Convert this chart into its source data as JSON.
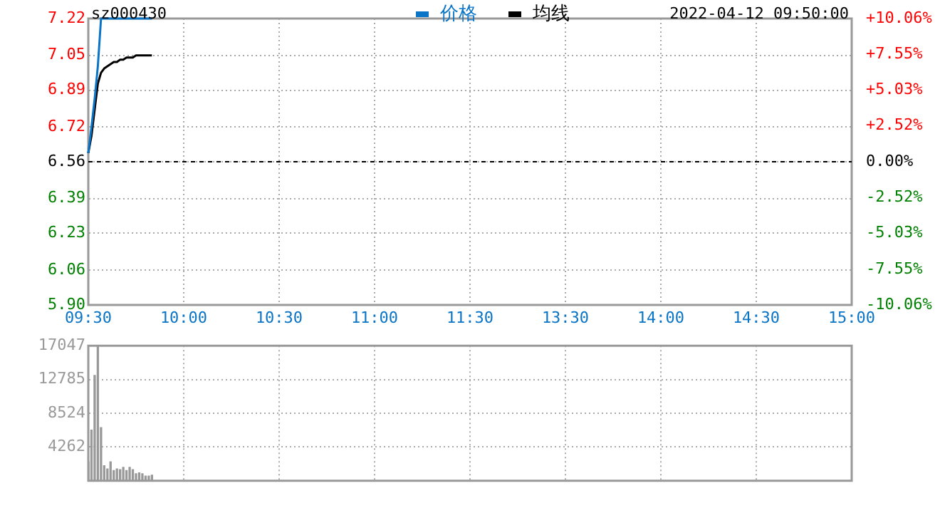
{
  "chart_data": [
    {
      "type": "line",
      "title": "sz000430",
      "annotations": [
        "2022-04-12 09:50:00"
      ],
      "categories": [
        "09:30",
        null,
        null,
        null,
        null,
        null,
        null,
        null,
        null,
        null,
        null,
        null,
        null,
        null,
        null,
        null,
        null,
        null,
        null,
        null,
        null,
        null,
        null,
        null,
        null,
        null,
        null,
        null,
        null,
        null,
        "10:00",
        null,
        null,
        null,
        null,
        null,
        null,
        null,
        null,
        null,
        null,
        null,
        null,
        null,
        null,
        null,
        null,
        null,
        null,
        null,
        null,
        null,
        null,
        null,
        null,
        null,
        null,
        null,
        null,
        null,
        "10:30",
        null,
        null,
        null,
        null,
        null,
        null,
        null,
        null,
        null,
        null,
        null,
        null,
        null,
        null,
        null,
        null,
        null,
        null,
        null,
        null,
        null,
        null,
        null,
        null,
        null,
        null,
        null,
        null,
        null,
        "11:00",
        null,
        null,
        null,
        null,
        null,
        null,
        null,
        null,
        null,
        null,
        null,
        null,
        null,
        null,
        null,
        null,
        null,
        null,
        null,
        null,
        null,
        null,
        null,
        null,
        null,
        null,
        null,
        null,
        null,
        "11:30",
        null,
        null,
        null,
        null,
        null,
        null,
        null,
        null,
        null,
        null,
        null,
        null,
        null,
        null,
        null,
        null,
        null,
        null,
        null,
        null,
        null,
        null,
        null,
        null,
        null,
        null,
        null,
        null,
        null,
        "13:30",
        null,
        null,
        null,
        null,
        null,
        null,
        null,
        null,
        null,
        null,
        null,
        null,
        null,
        null,
        null,
        null,
        null,
        null,
        null,
        null,
        null,
        null,
        null,
        null,
        null,
        null,
        null,
        null,
        null,
        "14:00",
        null,
        null,
        null,
        null,
        null,
        null,
        null,
        null,
        null,
        null,
        null,
        null,
        null,
        null,
        null,
        null,
        null,
        null,
        null,
        null,
        null,
        null,
        null,
        null,
        null,
        null,
        null,
        null,
        null,
        "14:30",
        null,
        null,
        null,
        null,
        null,
        null,
        null,
        null,
        null,
        null,
        null,
        null,
        null,
        null,
        null,
        null,
        null,
        null,
        null,
        null,
        null,
        null,
        null,
        null,
        null,
        null,
        null,
        null,
        null,
        "15:00"
      ],
      "series": [
        {
          "name": "价格",
          "color": "#0a74c6",
          "values": [
            6.6,
            6.72,
            6.85,
            7.0,
            7.22,
            7.22,
            7.22,
            7.22,
            7.22,
            7.22,
            7.22,
            7.22,
            7.22,
            7.22,
            7.22,
            7.22,
            7.22,
            7.22,
            7.22,
            7.22,
            7.22,
            null,
            null,
            null,
            null,
            null,
            null,
            null,
            null,
            null,
            null,
            null,
            null,
            null,
            null,
            null,
            null,
            null,
            null,
            null,
            null,
            null,
            null,
            null,
            null,
            null,
            null,
            null,
            null,
            null,
            null,
            null,
            null,
            null,
            null,
            null,
            null,
            null,
            null,
            null,
            null,
            null,
            null,
            null,
            null,
            null,
            null,
            null,
            null,
            null,
            null,
            null,
            null,
            null,
            null,
            null,
            null,
            null,
            null,
            null,
            null,
            null,
            null,
            null,
            null,
            null,
            null,
            null,
            null,
            null,
            null,
            null,
            null,
            null,
            null,
            null,
            null,
            null,
            null,
            null,
            null,
            null,
            null,
            null,
            null,
            null,
            null,
            null,
            null,
            null,
            null,
            null,
            null,
            null,
            null,
            null,
            null,
            null,
            null,
            null,
            null,
            null,
            null,
            null,
            null,
            null,
            null,
            null,
            null,
            null,
            null,
            null,
            null,
            null,
            null,
            null,
            null,
            null,
            null,
            null,
            null,
            null,
            null,
            null,
            null,
            null,
            null,
            null,
            null,
            null,
            null,
            null,
            null,
            null,
            null,
            null,
            null,
            null,
            null,
            null,
            null,
            null,
            null,
            null,
            null,
            null,
            null,
            null,
            null,
            null,
            null,
            null,
            null,
            null,
            null,
            null,
            null,
            null,
            null,
            null,
            null,
            null,
            null,
            null,
            null,
            null,
            null,
            null,
            null,
            null,
            null,
            null,
            null,
            null,
            null,
            null,
            null,
            null,
            null,
            null,
            null,
            null,
            null,
            null,
            null,
            null,
            null,
            null,
            null,
            null,
            null,
            null,
            null,
            null,
            null,
            null,
            null,
            null,
            null,
            null,
            null,
            null,
            null,
            null,
            null,
            null,
            null,
            null,
            null,
            null,
            null,
            null,
            null,
            null,
            null,
            null,
            null,
            null,
            null,
            null,
            null
          ]
        },
        {
          "name": "均线",
          "color": "#000000",
          "values": [
            6.6,
            6.68,
            6.8,
            6.92,
            6.97,
            6.99,
            7.0,
            7.01,
            7.02,
            7.02,
            7.03,
            7.03,
            7.04,
            7.04,
            7.04,
            7.05,
            7.05,
            7.05,
            7.05,
            7.05,
            7.05,
            null,
            null,
            null,
            null,
            null,
            null,
            null,
            null,
            null,
            null,
            null,
            null,
            null,
            null,
            null,
            null,
            null,
            null,
            null,
            null,
            null,
            null,
            null,
            null,
            null,
            null,
            null,
            null,
            null,
            null,
            null,
            null,
            null,
            null,
            null,
            null,
            null,
            null,
            null,
            null,
            null,
            null,
            null,
            null,
            null,
            null,
            null,
            null,
            null,
            null,
            null,
            null,
            null,
            null,
            null,
            null,
            null,
            null,
            null,
            null,
            null,
            null,
            null,
            null,
            null,
            null,
            null,
            null,
            null,
            null,
            null,
            null,
            null,
            null,
            null,
            null,
            null,
            null,
            null,
            null,
            null,
            null,
            null,
            null,
            null,
            null,
            null,
            null,
            null,
            null,
            null,
            null,
            null,
            null,
            null,
            null,
            null,
            null,
            null,
            null,
            null,
            null,
            null,
            null,
            null,
            null,
            null,
            null,
            null,
            null,
            null,
            null,
            null,
            null,
            null,
            null,
            null,
            null,
            null,
            null,
            null,
            null,
            null,
            null,
            null,
            null,
            null,
            null,
            null,
            null,
            null,
            null,
            null,
            null,
            null,
            null,
            null,
            null,
            null,
            null,
            null,
            null,
            null,
            null,
            null,
            null,
            null,
            null,
            null,
            null,
            null,
            null,
            null,
            null,
            null,
            null,
            null,
            null,
            null,
            null,
            null,
            null,
            null,
            null,
            null,
            null,
            null,
            null,
            null,
            null,
            null,
            null,
            null,
            null,
            null,
            null,
            null,
            null,
            null,
            null,
            null,
            null,
            null,
            null,
            null,
            null,
            null,
            null,
            null,
            null,
            null,
            null,
            null,
            null,
            null,
            null,
            null,
            null,
            null,
            null,
            null,
            null,
            null,
            null,
            null,
            null,
            null,
            null,
            null,
            null,
            null,
            null,
            null,
            null,
            null,
            null,
            null,
            null,
            null,
            null
          ]
        }
      ],
      "ylim": [
        5.9,
        7.22
      ],
      "yticks": [
        {
          "value": 5.9,
          "label": "5.90"
        },
        {
          "value": 6.06,
          "label": "6.06"
        },
        {
          "value": 6.23,
          "label": "6.23"
        },
        {
          "value": 6.39,
          "label": "6.39"
        },
        {
          "value": 6.56,
          "label": "6.56"
        },
        {
          "value": 6.72,
          "label": "6.72"
        },
        {
          "value": 6.89,
          "label": "6.89"
        },
        {
          "value": 7.05,
          "label": "7.05"
        },
        {
          "value": 7.22,
          "label": "7.22"
        }
      ],
      "y2lim": [
        -10.06,
        10.06
      ],
      "y2ticks": [
        {
          "value": -10.06,
          "label": "-10.06%"
        },
        {
          "value": -7.55,
          "label": "-7.55%"
        },
        {
          "value": -5.03,
          "label": "-5.03%"
        },
        {
          "value": -2.52,
          "label": "-2.52%"
        },
        {
          "value": 0,
          "label": "0.00%"
        },
        {
          "value": 2.52,
          "label": "+2.52%"
        },
        {
          "value": 5.03,
          "label": "+5.03%"
        },
        {
          "value": 7.55,
          "label": "+7.55%"
        },
        {
          "value": 10.06,
          "label": "+10.06%"
        }
      ],
      "ref_lines": [
        {
          "axis": "y",
          "value": 6.56,
          "color": "#000000",
          "line_style": "dashed"
        }
      ],
      "grid": true,
      "legend": "top",
      "marker": "none"
    },
    {
      "type": "bar",
      "categories": [
        null,
        null,
        null,
        null,
        null,
        null,
        null,
        null,
        null,
        null,
        null,
        null,
        null,
        null,
        null,
        null,
        null,
        null,
        null,
        null,
        null,
        null,
        null,
        null,
        null,
        null,
        null,
        null,
        null,
        null,
        null,
        null,
        null,
        null,
        null,
        null,
        null,
        null,
        null,
        null,
        null,
        null,
        null,
        null,
        null,
        null,
        null,
        null,
        null,
        null,
        null,
        null,
        null,
        null,
        null,
        null,
        null,
        null,
        null,
        null,
        null,
        null,
        null,
        null,
        null,
        null,
        null,
        null,
        null,
        null,
        null,
        null,
        null,
        null,
        null,
        null,
        null,
        null,
        null,
        null,
        null,
        null,
        null,
        null,
        null,
        null,
        null,
        null,
        null,
        null,
        null,
        null,
        null,
        null,
        null,
        null,
        null,
        null,
        null,
        null,
        null,
        null,
        null,
        null,
        null,
        null,
        null,
        null,
        null,
        null,
        null,
        null,
        null,
        null,
        null,
        null,
        null,
        null,
        null,
        null,
        null,
        null,
        null,
        null,
        null,
        null,
        null,
        null,
        null,
        null,
        null,
        null,
        null,
        null,
        null,
        null,
        null,
        null,
        null,
        null,
        null,
        null,
        null,
        null,
        null,
        null,
        null,
        null,
        null,
        null,
        null,
        null,
        null,
        null,
        null,
        null,
        null,
        null,
        null,
        null,
        null,
        null,
        null,
        null,
        null,
        null,
        null,
        null,
        null,
        null,
        null,
        null,
        null,
        null,
        null,
        null,
        null,
        null,
        null,
        null,
        null,
        null,
        null,
        null,
        null,
        null,
        null,
        null,
        null,
        null,
        null,
        null,
        null,
        null,
        null,
        null,
        null,
        null,
        null,
        null,
        null,
        null,
        null,
        null,
        null,
        null,
        null,
        null,
        null,
        null,
        null,
        null,
        null,
        null,
        null,
        null,
        null,
        null,
        null,
        null,
        null,
        null,
        null,
        null,
        null,
        null,
        null,
        null,
        null,
        null,
        null,
        null,
        null,
        null,
        null,
        null,
        null,
        null,
        null,
        null,
        null
      ],
      "values": [
        2400,
        6400,
        13300,
        17000,
        6700,
        1900,
        1500,
        2400,
        1300,
        1500,
        1400,
        1700,
        1300,
        1700,
        1400,
        900,
        1000,
        900,
        600,
        600,
        700,
        null,
        null,
        null,
        null,
        null,
        null,
        null,
        null,
        null,
        null,
        null,
        null,
        null,
        null,
        null,
        null,
        null,
        null,
        null,
        null,
        null,
        null,
        null,
        null,
        null,
        null,
        null,
        null,
        null,
        null,
        null,
        null,
        null,
        null,
        null,
        null,
        null,
        null,
        null,
        null,
        null,
        null,
        null,
        null,
        null,
        null,
        null,
        null,
        null,
        null,
        null,
        null,
        null,
        null,
        null,
        null,
        null,
        null,
        null,
        null,
        null,
        null,
        null,
        null,
        null,
        null,
        null,
        null,
        null,
        null,
        null,
        null,
        null,
        null,
        null,
        null,
        null,
        null,
        null,
        null,
        null,
        null,
        null,
        null,
        null,
        null,
        null,
        null,
        null,
        null,
        null,
        null,
        null,
        null,
        null,
        null,
        null,
        null,
        null,
        null,
        null,
        null,
        null,
        null,
        null,
        null,
        null,
        null,
        null,
        null,
        null,
        null,
        null,
        null,
        null,
        null,
        null,
        null,
        null,
        null,
        null,
        null,
        null,
        null,
        null,
        null,
        null,
        null,
        null,
        null,
        null,
        null,
        null,
        null,
        null,
        null,
        null,
        null,
        null,
        null,
        null,
        null,
        null,
        null,
        null,
        null,
        null,
        null,
        null,
        null,
        null,
        null,
        null,
        null,
        null,
        null,
        null,
        null,
        null,
        null,
        null,
        null,
        null,
        null,
        null,
        null,
        null,
        null,
        null,
        null,
        null,
        null,
        null,
        null,
        null,
        null,
        null,
        null,
        null,
        null,
        null,
        null,
        null,
        null,
        null,
        null,
        null,
        null,
        null,
        null,
        null,
        null,
        null,
        null,
        null,
        null,
        null,
        null,
        null,
        null,
        null,
        null,
        null,
        null,
        null,
        null,
        null,
        null,
        null,
        null,
        null,
        null,
        null,
        null,
        null,
        null,
        null,
        null,
        null,
        null
      ],
      "color": "#999999",
      "ylim": [
        0,
        17047
      ],
      "yticks": [
        {
          "value": 0,
          "label": null
        },
        4262,
        8524,
        12785,
        17047
      ],
      "grid": true,
      "tick_labels": "y"
    }
  ]
}
